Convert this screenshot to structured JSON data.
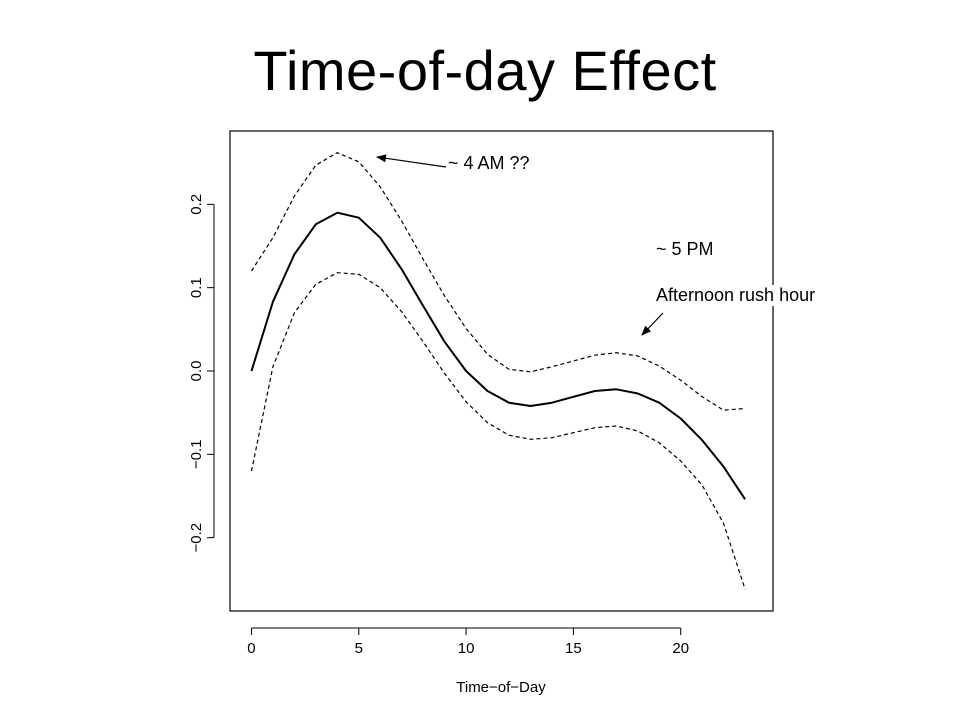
{
  "slide": {
    "title": "Time-of-day Effect"
  },
  "chart_data": {
    "type": "line",
    "xlabel": "Time−of−Day",
    "ylabel": "",
    "xlim": [
      -1,
      24.3
    ],
    "ylim": [
      -0.288,
      0.288
    ],
    "xticks": [
      0,
      5,
      10,
      15,
      20
    ],
    "xtick_labels": [
      "0",
      "5",
      "10",
      "15",
      "20"
    ],
    "yticks": [
      -0.2,
      -0.1,
      0.0,
      0.1,
      0.2
    ],
    "ytick_labels": [
      "−0.2",
      "−0.1",
      "0.0",
      "0.1",
      "0.2"
    ],
    "grid": false,
    "x": [
      0,
      1,
      2,
      3,
      4,
      5,
      6,
      7,
      8,
      9,
      10,
      11,
      12,
      13,
      14,
      15,
      16,
      17,
      18,
      19,
      20,
      21,
      22,
      23
    ],
    "series": [
      {
        "role": "estimate",
        "style": "solid",
        "values": [
          0.0,
          0.083,
          0.14,
          0.176,
          0.19,
          0.184,
          0.16,
          0.122,
          0.078,
          0.035,
          0.0,
          -0.024,
          -0.038,
          -0.042,
          -0.038,
          -0.031,
          -0.024,
          -0.022,
          -0.027,
          -0.038,
          -0.057,
          -0.083,
          -0.115,
          -0.154
        ]
      },
      {
        "role": "upper-bound",
        "style": "dashed",
        "values": [
          0.12,
          0.16,
          0.21,
          0.247,
          0.262,
          0.251,
          0.221,
          0.18,
          0.134,
          0.09,
          0.051,
          0.02,
          0.002,
          -0.001,
          0.005,
          0.012,
          0.019,
          0.022,
          0.018,
          0.006,
          -0.011,
          -0.031,
          -0.047,
          -0.045
        ]
      },
      {
        "role": "lower-bound",
        "style": "dashed",
        "values": [
          -0.12,
          0.005,
          0.07,
          0.104,
          0.118,
          0.116,
          0.1,
          0.071,
          0.035,
          -0.003,
          -0.037,
          -0.062,
          -0.077,
          -0.082,
          -0.08,
          -0.074,
          -0.068,
          -0.066,
          -0.072,
          -0.086,
          -0.108,
          -0.137,
          -0.183,
          -0.262
        ]
      }
    ],
    "annotations": [
      {
        "text": "~ 4 AM ??",
        "target": {
          "x": 5.9,
          "y": 0.255
        }
      },
      {
        "lines": [
          "~ 5 PM",
          "Afternoon rush hour"
        ],
        "target": {
          "x": 17.9,
          "y": 0.042
        }
      }
    ]
  }
}
